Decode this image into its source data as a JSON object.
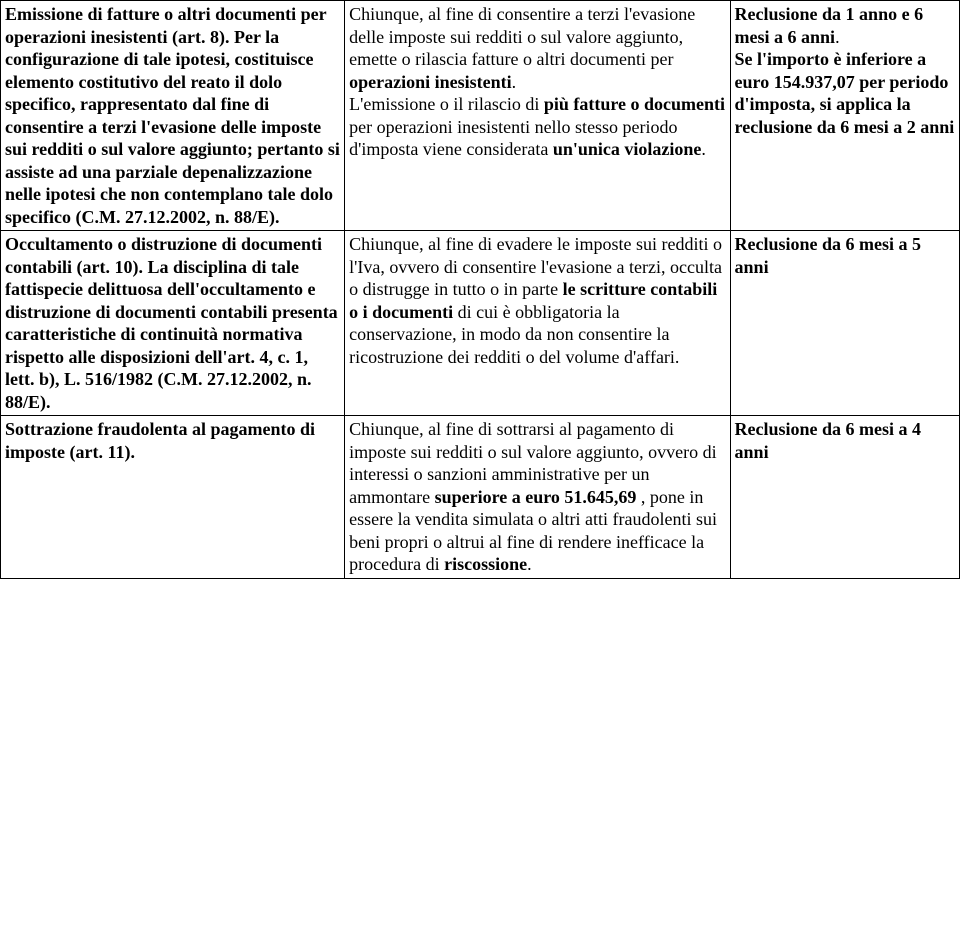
{
  "rows": [
    {
      "c1": [
        {
          "b": "Emissione di fatture o altri documenti per operazioni inesistenti (art. 8)."
        },
        {
          "b": " Per la configurazione di tale ipotesi, costituisce elemento costitutivo del reato il dolo specifico, rappresentato dal fine di consentire a terzi l'evasione delle imposte sui redditi o sul valore aggiunto; pertanto si assiste ad una parziale depenalizzazione nelle ipotesi che non contemplano tale dolo specifico (C.M. 27.12.2002, n. 88/E)."
        }
      ],
      "c2": [
        {
          "t": "Chiunque, al fine di consentire a terzi l'evasione delle imposte sui redditi o sul valore aggiunto, emette o rilascia fatture o altri documenti per "
        },
        {
          "b": "operazioni inesistenti"
        },
        {
          "t": "."
        },
        {
          "br": true
        },
        {
          "t": "L'emissione o il rilascio di "
        },
        {
          "b": "più fatture o documenti"
        },
        {
          "t": " per operazioni inesistenti nello stesso periodo d'imposta viene considerata "
        },
        {
          "b": "un'unica violazione"
        },
        {
          "t": "."
        }
      ],
      "c3": [
        {
          "b": "Reclusione da 1 anno e 6 mesi a 6 anni"
        },
        {
          "t": "."
        },
        {
          "br": true
        },
        {
          "b": "Se l'importo è inferiore a euro 154.937,07 per periodo d'imposta, si applica la reclusione da 6 mesi a 2 anni"
        }
      ]
    },
    {
      "c1": [
        {
          "b": "Occultamento o distruzione di documenti contabili (art. 10)."
        },
        {
          "b": " La disciplina di tale fattispecie delittuosa dell'occultamento e distruzione di documenti contabili presenta caratteristiche di continuità normativa rispetto alle disposizioni dell'art. 4, c. 1, lett. b), L. 516/1982 (C.M. 27.12.2002, n. 88/E)."
        }
      ],
      "c2": [
        {
          "t": "Chiunque, al fine di evadere le imposte sui redditi o l'Iva, ovvero di consentire l'evasione a terzi, occulta o distrugge in tutto o in parte "
        },
        {
          "b": "le scritture contabili o i documenti"
        },
        {
          "t": " di cui è obbligatoria la conservazione, in modo da non consentire la ricostruzione dei redditi o del volume d'affari."
        }
      ],
      "c3": [
        {
          "b": "Reclusione da 6 mesi a 5 anni"
        }
      ]
    },
    {
      "c1": [
        {
          "b": "Sottrazione fraudolenta al pagamento di imposte (art. 11)."
        }
      ],
      "c2": [
        {
          "t": "Chiunque, al fine di sottrarsi al pagamento di imposte sui redditi o sul valore aggiunto, ovvero di interessi o sanzioni amministrative per un ammontare "
        },
        {
          "b": "superiore a euro 51.645,69"
        },
        {
          "t": " , pone in essere la vendita simulata o altri atti fraudolenti sui beni propri o altrui al fine di rendere inefficace la procedura di "
        },
        {
          "b": "riscossione"
        },
        {
          "t": "."
        }
      ],
      "c3": [
        {
          "b": "Reclusione da 6 mesi a 4 anni"
        }
      ]
    }
  ]
}
